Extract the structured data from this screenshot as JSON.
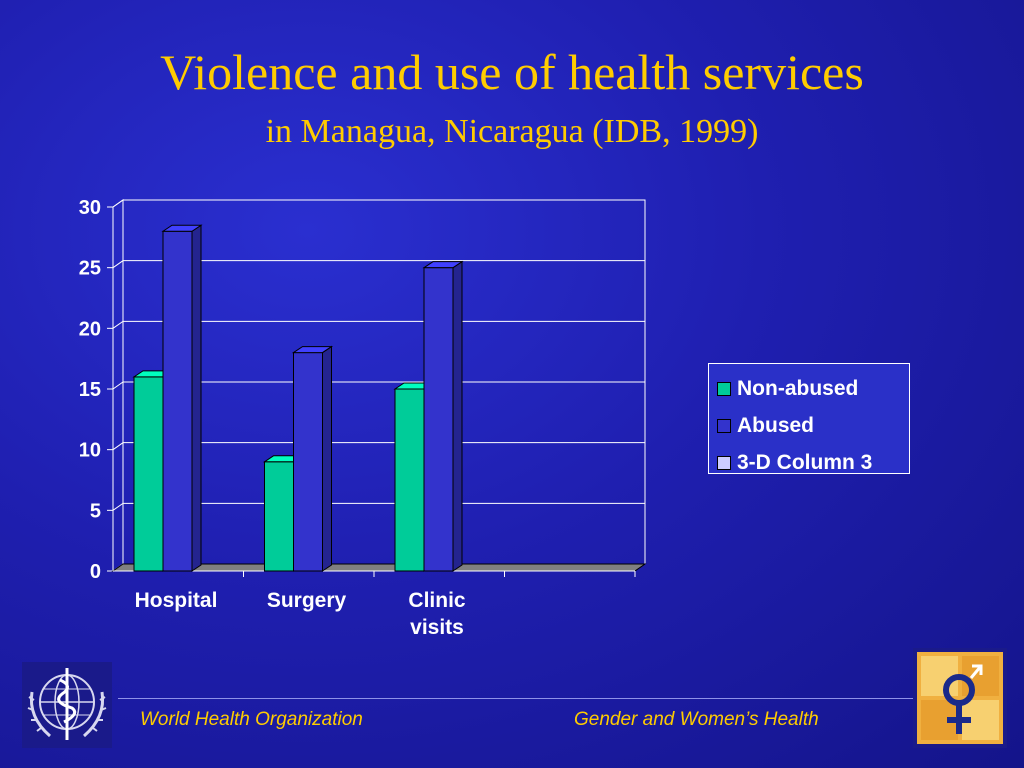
{
  "slide": {
    "title": "Violence and use of health services",
    "subtitle": "in Managua, Nicaragua (IDB, 1999)"
  },
  "chart_data": {
    "type": "bar",
    "categories": [
      "Hospital",
      "Surgery",
      "Clinic visits"
    ],
    "category_lines": [
      [
        "Hospital"
      ],
      [
        "Surgery"
      ],
      [
        "Clinic",
        "visits"
      ]
    ],
    "series": [
      {
        "name": "Non-abused",
        "values": [
          16,
          9,
          15
        ],
        "color": "#00cc99"
      },
      {
        "name": "Abused",
        "values": [
          28,
          18,
          25
        ],
        "color": "#3333cc"
      },
      {
        "name": "3-D Column 3",
        "values": [
          0,
          0,
          0
        ],
        "color": "#ccccff"
      }
    ],
    "yticks": [
      "0",
      "5",
      "10",
      "15",
      "20",
      "25",
      "30"
    ],
    "ylim": [
      0,
      30
    ],
    "grid": true,
    "legend_position": "right",
    "colors": {
      "floor": "#808080",
      "grid": "#ffffff",
      "text": "#ffffff"
    }
  },
  "footer": {
    "left": "World Health Organization",
    "right": "Gender and Women’s Health"
  },
  "logos": {
    "left": "who-emblem-icon",
    "right": "gender-symbol-icon"
  }
}
